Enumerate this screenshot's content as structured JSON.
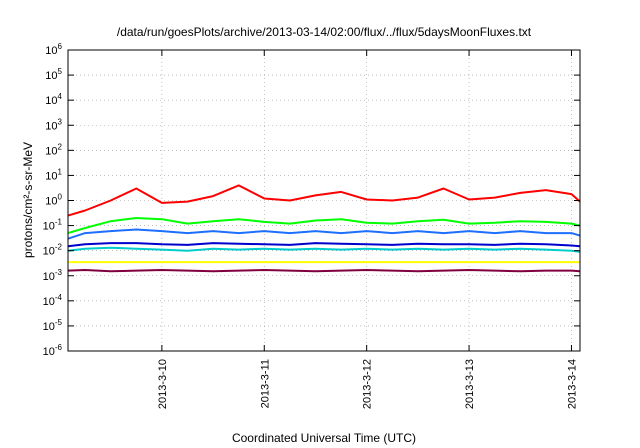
{
  "chart_data": {
    "type": "line",
    "title": "/data/run/goesPlots/archive/2013-03-14/02:00/flux/../flux/5daysMoonFluxes.txt",
    "xlabel": "Coordinated Universal Time (UTC)",
    "ylabel": "protons/cm²-s-sr-MeV",
    "yscale": "log",
    "ylim": [
      1e-06,
      1000000.0
    ],
    "x_ticks": [
      "2013-3-10",
      "2013-3-11",
      "2013-3-12",
      "2013-3-13",
      "2013-3-14"
    ],
    "y_ticks": [
      "10^-6",
      "10^-5",
      "10^-4",
      "10^-3",
      "10^-2",
      "10^-1",
      "10^0",
      "10^1",
      "10^2",
      "10^3",
      "10^4",
      "10^5",
      "10^6"
    ],
    "grid": true,
    "legend": "none",
    "x_dates": [
      "2013-03-09 00:00",
      "2013-03-09 06:00",
      "2013-03-09 12:00",
      "2013-03-09 18:00",
      "2013-03-10 00:00",
      "2013-03-10 06:00",
      "2013-03-10 12:00",
      "2013-03-10 18:00",
      "2013-03-11 00:00",
      "2013-03-11 06:00",
      "2013-03-11 12:00",
      "2013-03-11 18:00",
      "2013-03-12 00:00",
      "2013-03-12 06:00",
      "2013-03-12 12:00",
      "2013-03-12 18:00",
      "2013-03-13 00:00",
      "2013-03-13 06:00",
      "2013-03-13 12:00",
      "2013-03-13 18:00",
      "2013-03-14 00:00",
      "2013-03-14 02:00"
    ],
    "series": [
      {
        "color": "#ff0000",
        "values": [
          0.25,
          0.4,
          1.0,
          3.0,
          0.8,
          0.9,
          1.5,
          4.0,
          1.2,
          1.0,
          1.6,
          2.2,
          1.1,
          1.0,
          1.3,
          3.0,
          1.1,
          1.3,
          2.0,
          2.6,
          1.8,
          0.9
        ]
      },
      {
        "color": "#00ff00",
        "values": [
          0.05,
          0.08,
          0.15,
          0.2,
          0.18,
          0.12,
          0.15,
          0.18,
          0.14,
          0.12,
          0.16,
          0.18,
          0.13,
          0.12,
          0.15,
          0.17,
          0.12,
          0.13,
          0.15,
          0.14,
          0.12,
          0.1
        ]
      },
      {
        "color": "#1e6fff",
        "values": [
          0.03,
          0.05,
          0.06,
          0.07,
          0.06,
          0.05,
          0.06,
          0.05,
          0.06,
          0.05,
          0.06,
          0.05,
          0.06,
          0.05,
          0.06,
          0.05,
          0.06,
          0.05,
          0.06,
          0.05,
          0.05,
          0.04
        ]
      },
      {
        "color": "#00cccc",
        "values": [
          0.01,
          0.012,
          0.013,
          0.012,
          0.011,
          0.01,
          0.012,
          0.011,
          0.012,
          0.011,
          0.012,
          0.011,
          0.012,
          0.011,
          0.012,
          0.011,
          0.012,
          0.011,
          0.012,
          0.011,
          0.01,
          0.009
        ]
      },
      {
        "color": "#0000cc",
        "values": [
          0.015,
          0.018,
          0.02,
          0.02,
          0.018,
          0.017,
          0.02,
          0.019,
          0.018,
          0.017,
          0.02,
          0.019,
          0.018,
          0.017,
          0.019,
          0.018,
          0.018,
          0.017,
          0.019,
          0.018,
          0.016,
          0.015
        ]
      },
      {
        "color": "#ffff00",
        "values": [
          0.0035,
          0.0035,
          0.0035,
          0.0035,
          0.0035,
          0.0035,
          0.0035,
          0.0035,
          0.0035,
          0.0035,
          0.0035,
          0.0035,
          0.0035,
          0.0035,
          0.0035,
          0.0035,
          0.0035,
          0.0035,
          0.0035,
          0.0035,
          0.0035,
          0.0035
        ]
      },
      {
        "color": "#800040",
        "values": [
          0.0016,
          0.0017,
          0.0015,
          0.0016,
          0.0017,
          0.0016,
          0.0015,
          0.0016,
          0.0017,
          0.0016,
          0.0015,
          0.0016,
          0.0017,
          0.0016,
          0.0015,
          0.0016,
          0.0017,
          0.0016,
          0.0015,
          0.0016,
          0.0016,
          0.0015
        ]
      }
    ]
  }
}
